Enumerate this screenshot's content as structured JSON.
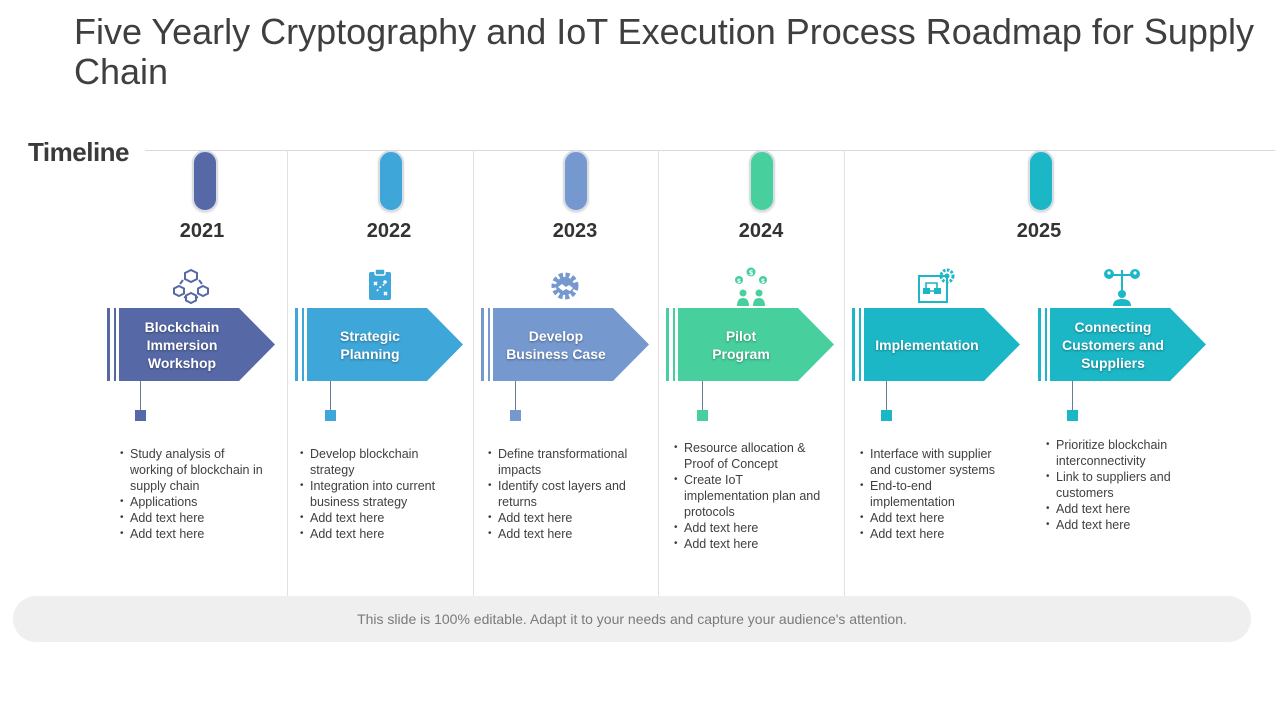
{
  "title": "Five Yearly Cryptography and IoT Execution Process Roadmap for Supply Chain",
  "timeline_label": "Timeline",
  "footer": "This slide is 100% editable. Adapt it to your needs and capture your audience's attention.",
  "colors": {
    "2021": "#5669a6",
    "2022": "#3ea6d9",
    "2023": "#7598cf",
    "2024": "#47cf9d",
    "2025": "#1cb7c6"
  },
  "years": [
    "2021",
    "2022",
    "2023",
    "2024",
    "2025"
  ],
  "stages": [
    {
      "label": "Blockchain\nImmersion\nWorkshop",
      "icon": "network-cubes-icon",
      "color": "#5669a6",
      "bullets": [
        "Study analysis of working of blockchain in supply chain",
        "Applications",
        "Add text here",
        "Add text here"
      ]
    },
    {
      "label": "Strategic\nPlanning",
      "icon": "clipboard-strategy-icon",
      "color": "#3ea6d9",
      "bullets": [
        "Develop blockchain strategy",
        "Integration into current business strategy",
        "Add text here",
        "Add text here"
      ]
    },
    {
      "label": "Develop\nBusiness Case",
      "icon": "gear-handshake-icon",
      "color": "#7598cf",
      "bullets": [
        "Define transformational impacts",
        "Identify cost layers and returns",
        "Add text here",
        "Add text here"
      ]
    },
    {
      "label": "Pilot\nProgram",
      "icon": "people-dollar-icon",
      "color": "#47cf9d",
      "bullets": [
        "Resource allocation & Proof of Concept",
        "Create IoT implementation plan and protocols",
        "Add text here",
        "Add text here"
      ]
    },
    {
      "label": "Implementation",
      "icon": "flowchart-gear-icon",
      "color": "#1cb7c6",
      "bullets": [
        "Interface with supplier and customer systems",
        "End-to-end implementation",
        "Add text here",
        "Add text here"
      ]
    },
    {
      "label": "Connecting\nCustomers and\nSuppliers",
      "icon": "balance-people-icon",
      "color": "#1cb7c6",
      "bullets": [
        "Prioritize blockchain interconnectivity",
        "Link to suppliers and customers",
        "Add text here",
        "Add text here"
      ]
    }
  ]
}
